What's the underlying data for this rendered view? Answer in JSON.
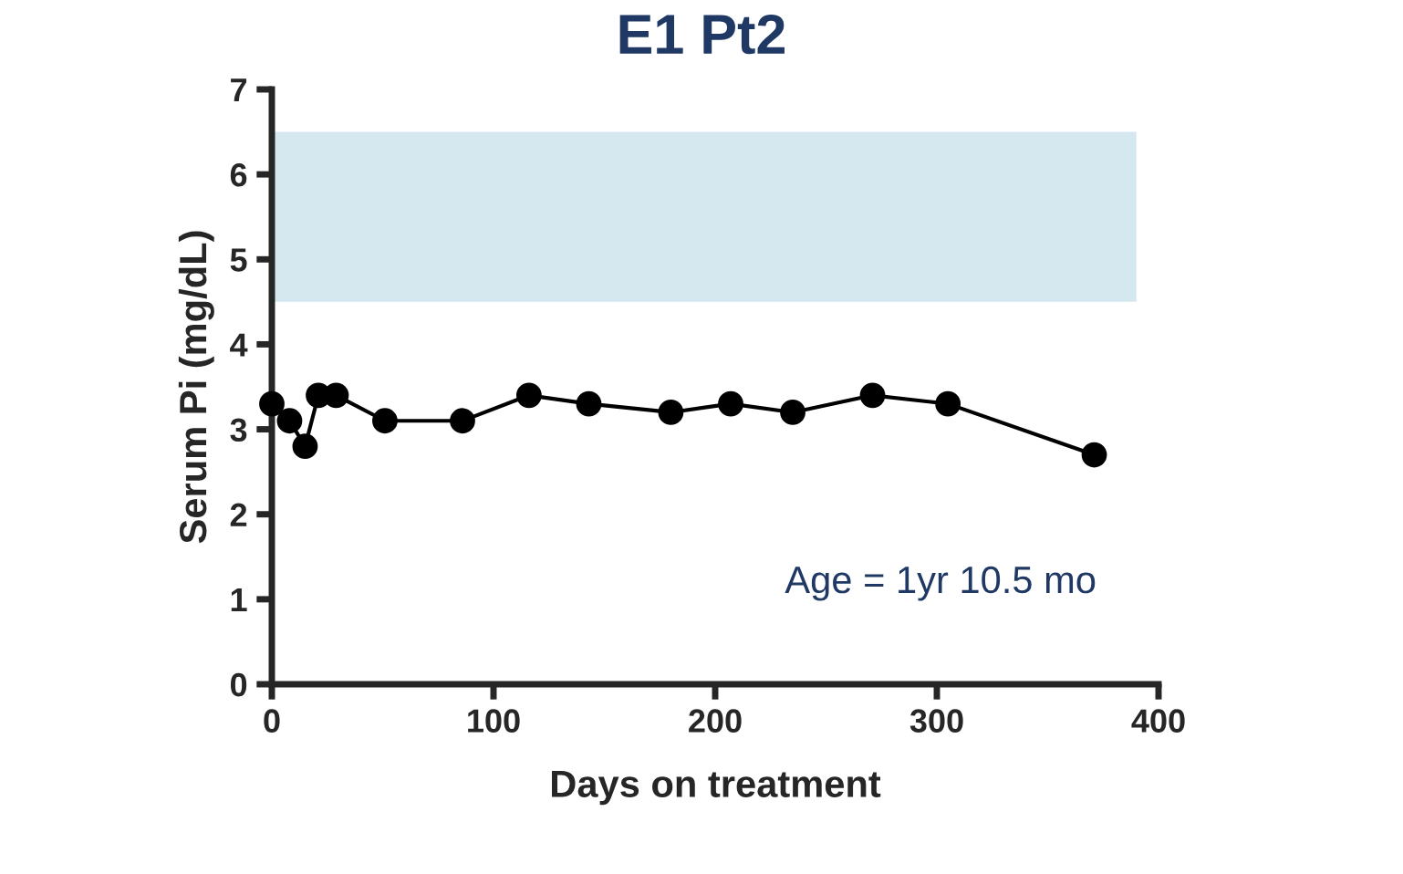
{
  "chart_data": {
    "type": "line",
    "title": "E1 Pt2",
    "xlabel": "Days on treatment",
    "ylabel": "Serum Pi (mg/dL)",
    "x": [
      0,
      8,
      15,
      21,
      29,
      51,
      86,
      116,
      143,
      180,
      207,
      235,
      271,
      305,
      371
    ],
    "series": [
      {
        "color": "#000000",
        "values": [
          3.3,
          3.1,
          2.8,
          3.4,
          3.4,
          3.1,
          3.1,
          3.4,
          3.3,
          3.2,
          3.3,
          3.2,
          3.4,
          3.3,
          2.7
        ]
      }
    ],
    "xlim": [
      0,
      400
    ],
    "xticks": [
      0,
      100,
      200,
      300,
      400
    ],
    "ylim": [
      0,
      7
    ],
    "yticks": [
      0,
      1,
      2,
      3,
      4,
      5,
      6,
      7
    ],
    "bands": [
      {
        "axis": "y",
        "from": 4.5,
        "to": 6.5,
        "color": "#d5e8f0"
      }
    ],
    "annotations": [
      "Age = 1yr 10.5 mo"
    ],
    "marker": "circle",
    "line_style": "solid",
    "grid": false,
    "legend": false
  }
}
